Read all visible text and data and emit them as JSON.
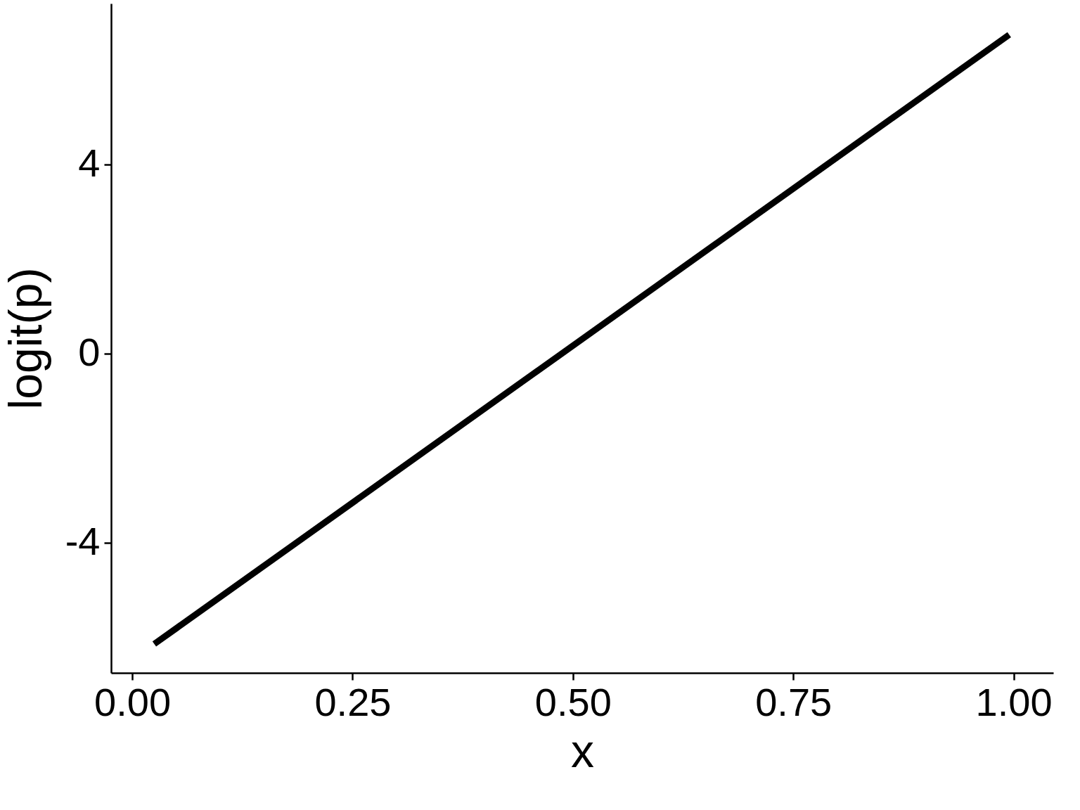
{
  "chart_data": {
    "type": "line",
    "xlabel": "x",
    "ylabel": "logit(p)",
    "x": [
      0.025,
      0.995
    ],
    "series": [
      {
        "color": "#000000",
        "values": [
          -6.14,
          6.74
        ]
      }
    ],
    "xlim": [
      -0.024,
      1.045
    ],
    "ylim": [
      -6.75,
      7.4
    ],
    "xticks": [
      {
        "value": 0,
        "label": "0.00"
      },
      {
        "value": 0.25,
        "label": "0.25"
      },
      {
        "value": 0.5,
        "label": "0.50"
      },
      {
        "value": 0.75,
        "label": "0.75"
      },
      {
        "value": 1,
        "label": "1.00"
      }
    ],
    "yticks": [
      -4,
      0,
      4
    ],
    "grid": false,
    "marker": "none",
    "line_style": "solid"
  }
}
